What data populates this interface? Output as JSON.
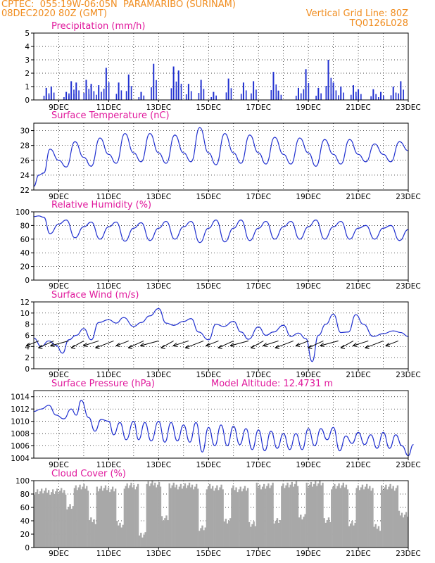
{
  "header": {
    "left_line1": "CPTEC:  055:19W-06:05N  PARAMARIBO (SURINAM)",
    "left_line2": "08DEC2020 80Z (GMT)",
    "right_line1": "Vertical Grid Line: 80Z",
    "right_line2": "TQ0126L028"
  },
  "colors": {
    "header": "#f08c1e",
    "title": "#e0189c",
    "series": "#2030d0",
    "cloud": "#a8a8a8",
    "wind_arrow": "#000000"
  },
  "chart_data": [
    {
      "type": "bar",
      "title": "Precipitation (mm/h)",
      "x_ticks": [
        "9DEC",
        "11DEC",
        "13DEC",
        "15DEC",
        "17DEC",
        "19DEC",
        "21DEC",
        "23DEC"
      ],
      "x_range_days": [
        8,
        23
      ],
      "ylim": [
        0,
        5
      ],
      "yticks": [
        0,
        1,
        2,
        3,
        4,
        5
      ],
      "grid": true,
      "events": [
        {
          "day": 8.5,
          "mm_h": 0.9
        },
        {
          "day": 8.7,
          "mm_h": 1.0
        },
        {
          "day": 9.3,
          "mm_h": 0.6
        },
        {
          "day": 9.5,
          "mm_h": 1.4
        },
        {
          "day": 9.7,
          "mm_h": 1.3
        },
        {
          "day": 10.1,
          "mm_h": 1.5
        },
        {
          "day": 10.3,
          "mm_h": 1.2
        },
        {
          "day": 10.6,
          "mm_h": 1.1
        },
        {
          "day": 10.9,
          "mm_h": 2.4
        },
        {
          "day": 11.4,
          "mm_h": 1.3
        },
        {
          "day": 11.8,
          "mm_h": 1.9
        },
        {
          "day": 12.3,
          "mm_h": 0.6
        },
        {
          "day": 12.8,
          "mm_h": 2.7
        },
        {
          "day": 13.6,
          "mm_h": 2.5
        },
        {
          "day": 13.8,
          "mm_h": 2.2
        },
        {
          "day": 14.2,
          "mm_h": 1.2
        },
        {
          "day": 14.7,
          "mm_h": 1.5
        },
        {
          "day": 15.2,
          "mm_h": 0.6
        },
        {
          "day": 15.8,
          "mm_h": 1.6
        },
        {
          "day": 16.4,
          "mm_h": 1.3
        },
        {
          "day": 16.8,
          "mm_h": 1.4
        },
        {
          "day": 17.6,
          "mm_h": 2.1
        },
        {
          "day": 17.8,
          "mm_h": 0.7
        },
        {
          "day": 18.6,
          "mm_h": 0.9
        },
        {
          "day": 18.9,
          "mm_h": 2.3
        },
        {
          "day": 19.4,
          "mm_h": 0.9
        },
        {
          "day": 19.8,
          "mm_h": 3.0
        },
        {
          "day": 20.0,
          "mm_h": 1.3
        },
        {
          "day": 20.3,
          "mm_h": 1.0
        },
        {
          "day": 20.8,
          "mm_h": 1.1
        },
        {
          "day": 21.0,
          "mm_h": 0.8
        },
        {
          "day": 21.6,
          "mm_h": 0.8
        },
        {
          "day": 21.9,
          "mm_h": 0.6
        },
        {
          "day": 22.4,
          "mm_h": 1.0
        },
        {
          "day": 22.7,
          "mm_h": 1.4
        }
      ]
    },
    {
      "type": "line",
      "title": "Surface Temperature (nC)",
      "x_ticks": [
        "9DEC",
        "11DEC",
        "13DEC",
        "15DEC",
        "17DEC",
        "19DEC",
        "21DEC",
        "23DEC"
      ],
      "x_range_days": [
        8,
        23
      ],
      "ylim": [
        22,
        31
      ],
      "yticks": [
        22,
        24,
        26,
        28,
        30
      ],
      "grid": true,
      "points": [
        [
          8.0,
          22.5
        ],
        [
          8.2,
          24.0
        ],
        [
          8.4,
          24.3
        ],
        [
          8.65,
          27.5
        ],
        [
          9.0,
          26.0
        ],
        [
          9.3,
          25.1
        ],
        [
          9.65,
          28.5
        ],
        [
          10.0,
          26.4
        ],
        [
          10.3,
          25.2
        ],
        [
          10.65,
          29.0
        ],
        [
          11.0,
          26.8
        ],
        [
          11.3,
          25.6
        ],
        [
          11.65,
          29.6
        ],
        [
          12.0,
          27.0
        ],
        [
          12.3,
          25.8
        ],
        [
          12.65,
          29.6
        ],
        [
          13.0,
          27.0
        ],
        [
          13.3,
          25.6
        ],
        [
          13.65,
          29.4
        ],
        [
          14.0,
          27.0
        ],
        [
          14.3,
          25.8
        ],
        [
          14.65,
          30.4
        ],
        [
          15.0,
          27.0
        ],
        [
          15.3,
          25.4
        ],
        [
          15.65,
          29.6
        ],
        [
          16.0,
          27.0
        ],
        [
          16.3,
          25.6
        ],
        [
          16.65,
          29.4
        ],
        [
          17.0,
          27.0
        ],
        [
          17.3,
          25.5
        ],
        [
          17.65,
          29.1
        ],
        [
          18.0,
          26.8
        ],
        [
          18.3,
          25.5
        ],
        [
          18.65,
          29.0
        ],
        [
          19.0,
          27.0
        ],
        [
          19.3,
          25.2
        ],
        [
          19.65,
          28.8
        ],
        [
          20.0,
          26.8
        ],
        [
          20.3,
          25.5
        ],
        [
          20.65,
          28.8
        ],
        [
          21.0,
          26.8
        ],
        [
          21.3,
          25.8
        ],
        [
          21.65,
          28.2
        ],
        [
          22.0,
          26.8
        ],
        [
          22.3,
          25.8
        ],
        [
          22.65,
          28.5
        ],
        [
          23.0,
          27.3
        ]
      ]
    },
    {
      "type": "line",
      "title": "Relative Humidity (%)",
      "x_ticks": [
        "9DEC",
        "11DEC",
        "13DEC",
        "15DEC",
        "17DEC",
        "19DEC",
        "21DEC",
        "23DEC"
      ],
      "x_range_days": [
        8,
        23
      ],
      "ylim": [
        0,
        100
      ],
      "yticks": [
        0,
        20,
        40,
        60,
        80,
        100
      ],
      "grid": true,
      "points": [
        [
          8.0,
          93
        ],
        [
          8.2,
          94
        ],
        [
          8.4,
          92
        ],
        [
          8.65,
          68
        ],
        [
          9.0,
          82
        ],
        [
          9.3,
          88
        ],
        [
          9.65,
          62
        ],
        [
          10.0,
          78
        ],
        [
          10.3,
          85
        ],
        [
          10.65,
          60
        ],
        [
          11.0,
          78
        ],
        [
          11.3,
          85
        ],
        [
          11.65,
          57
        ],
        [
          12.0,
          76
        ],
        [
          12.3,
          84
        ],
        [
          12.65,
          58
        ],
        [
          13.0,
          76
        ],
        [
          13.3,
          86
        ],
        [
          13.65,
          60
        ],
        [
          14.0,
          78
        ],
        [
          14.3,
          86
        ],
        [
          14.65,
          55
        ],
        [
          15.0,
          76
        ],
        [
          15.3,
          88
        ],
        [
          15.65,
          56
        ],
        [
          16.0,
          76
        ],
        [
          16.3,
          88
        ],
        [
          16.65,
          58
        ],
        [
          17.0,
          76
        ],
        [
          17.3,
          86
        ],
        [
          17.65,
          60
        ],
        [
          18.0,
          78
        ],
        [
          18.3,
          86
        ],
        [
          18.65,
          60
        ],
        [
          19.0,
          78
        ],
        [
          19.3,
          88
        ],
        [
          19.65,
          60
        ],
        [
          20.0,
          78
        ],
        [
          20.3,
          86
        ],
        [
          20.65,
          60
        ],
        [
          21.0,
          76
        ],
        [
          21.3,
          80
        ],
        [
          21.65,
          60
        ],
        [
          22.0,
          76
        ],
        [
          22.3,
          80
        ],
        [
          22.65,
          58
        ],
        [
          23.0,
          74
        ]
      ]
    },
    {
      "type": "line",
      "title": "Surface Wind (m/s)",
      "x_ticks": [
        "9DEC",
        "11DEC",
        "13DEC",
        "15DEC",
        "17DEC",
        "19DEC",
        "21DEC",
        "23DEC"
      ],
      "x_range_days": [
        8,
        23
      ],
      "ylim": [
        0,
        12
      ],
      "yticks": [
        0,
        2,
        4,
        6,
        8,
        10,
        12
      ],
      "grid": true,
      "points": [
        [
          8.0,
          5.5
        ],
        [
          8.3,
          4.0
        ],
        [
          8.6,
          5.0
        ],
        [
          8.9,
          4.2
        ],
        [
          9.15,
          2.8
        ],
        [
          9.4,
          5.2
        ],
        [
          9.7,
          6.0
        ],
        [
          10.0,
          7.2
        ],
        [
          10.3,
          5.2
        ],
        [
          10.6,
          8.3
        ],
        [
          11.0,
          8.8
        ],
        [
          11.3,
          8.2
        ],
        [
          11.6,
          9.2
        ],
        [
          12.0,
          7.6
        ],
        [
          12.3,
          8.3
        ],
        [
          12.65,
          9.5
        ],
        [
          13.0,
          10.8
        ],
        [
          13.3,
          8.2
        ],
        [
          13.6,
          7.8
        ],
        [
          14.0,
          8.5
        ],
        [
          14.3,
          9.0
        ],
        [
          14.6,
          6.6
        ],
        [
          15.0,
          5.2
        ],
        [
          15.3,
          8.0
        ],
        [
          15.6,
          7.6
        ],
        [
          16.0,
          8.5
        ],
        [
          16.3,
          6.6
        ],
        [
          16.6,
          5.3
        ],
        [
          17.0,
          7.5
        ],
        [
          17.3,
          6.0
        ],
        [
          17.6,
          6.6
        ],
        [
          18.0,
          7.8
        ],
        [
          18.3,
          5.8
        ],
        [
          18.6,
          6.4
        ],
        [
          18.9,
          5.4
        ],
        [
          19.15,
          1.3
        ],
        [
          19.4,
          6.0
        ],
        [
          19.7,
          8.0
        ],
        [
          20.0,
          9.8
        ],
        [
          20.3,
          6.5
        ],
        [
          20.6,
          6.6
        ],
        [
          20.9,
          9.7
        ],
        [
          21.2,
          8.0
        ],
        [
          21.6,
          5.8
        ],
        [
          22.0,
          6.3
        ],
        [
          22.4,
          6.8
        ],
        [
          22.7,
          6.5
        ],
        [
          23.0,
          5.8
        ]
      ],
      "arrows_days": [
        8.2,
        8.8,
        9.4,
        10.0,
        10.6,
        11.2,
        11.8,
        12.4,
        13.0,
        13.6,
        14.2,
        14.8,
        15.4,
        16.0,
        16.6,
        17.2,
        17.8,
        18.4,
        19.0,
        19.6,
        20.2,
        20.8,
        21.4,
        22.0,
        22.6
      ]
    },
    {
      "type": "line",
      "title": "Surface Pressure (hPa)",
      "annotation": "Model Altitude: 12.4731 m",
      "x_ticks": [
        "9DEC",
        "11DEC",
        "13DEC",
        "15DEC",
        "17DEC",
        "19DEC",
        "21DEC",
        "23DEC"
      ],
      "x_range_days": [
        8,
        23
      ],
      "ylim": [
        1004,
        1015
      ],
      "yticks": [
        1004,
        1006,
        1008,
        1010,
        1012,
        1014
      ],
      "grid": true,
      "points": [
        [
          8.0,
          1011.6
        ],
        [
          8.3,
          1012.0
        ],
        [
          8.6,
          1012.6
        ],
        [
          8.9,
          1011.0
        ],
        [
          9.2,
          1010.4
        ],
        [
          9.5,
          1012.0
        ],
        [
          9.7,
          1011.0
        ],
        [
          9.9,
          1013.4
        ],
        [
          10.2,
          1010.6
        ],
        [
          10.45,
          1008.4
        ],
        [
          10.7,
          1010.3
        ],
        [
          11.0,
          1010.0
        ],
        [
          11.2,
          1007.8
        ],
        [
          11.45,
          1009.8
        ],
        [
          11.7,
          1007.0
        ],
        [
          12.0,
          1010.0
        ],
        [
          12.2,
          1007.0
        ],
        [
          12.45,
          1009.8
        ],
        [
          12.7,
          1006.8
        ],
        [
          13.0,
          1010.0
        ],
        [
          13.25,
          1006.6
        ],
        [
          13.5,
          1009.8
        ],
        [
          13.75,
          1006.8
        ],
        [
          14.0,
          1009.4
        ],
        [
          14.25,
          1006.6
        ],
        [
          14.5,
          1009.8
        ],
        [
          14.75,
          1005.0
        ],
        [
          15.0,
          1009.0
        ],
        [
          15.25,
          1006.0
        ],
        [
          15.5,
          1009.4
        ],
        [
          15.75,
          1006.0
        ],
        [
          16.0,
          1009.2
        ],
        [
          16.25,
          1006.2
        ],
        [
          16.5,
          1008.8
        ],
        [
          16.75,
          1005.4
        ],
        [
          17.0,
          1008.6
        ],
        [
          17.25,
          1005.2
        ],
        [
          17.5,
          1008.4
        ],
        [
          17.75,
          1005.6
        ],
        [
          18.0,
          1008.0
        ],
        [
          18.25,
          1005.4
        ],
        [
          18.5,
          1008.0
        ],
        [
          18.75,
          1005.4
        ],
        [
          19.0,
          1008.8
        ],
        [
          19.25,
          1006.0
        ],
        [
          19.5,
          1008.8
        ],
        [
          19.75,
          1007.0
        ],
        [
          20.0,
          1009.0
        ],
        [
          20.25,
          1005.2
        ],
        [
          20.5,
          1007.6
        ],
        [
          20.75,
          1006.4
        ],
        [
          21.0,
          1008.2
        ],
        [
          21.25,
          1006.2
        ],
        [
          21.5,
          1007.8
        ],
        [
          21.75,
          1005.6
        ],
        [
          22.0,
          1008.2
        ],
        [
          22.25,
          1005.6
        ],
        [
          22.5,
          1007.8
        ],
        [
          22.75,
          1006.0
        ],
        [
          23.0,
          1004.4
        ],
        [
          23.2,
          1006.2
        ]
      ]
    },
    {
      "type": "bar",
      "title": "Cloud Cover (%)",
      "x_ticks": [
        "9DEC",
        "11DEC",
        "13DEC",
        "15DEC",
        "17DEC",
        "19DEC",
        "21DEC",
        "23DEC"
      ],
      "x_range_days": [
        8,
        23
      ],
      "ylim": [
        0,
        100
      ],
      "yticks": [
        0,
        20,
        40,
        60,
        80,
        100
      ],
      "grid": true,
      "segments": [
        {
          "from": 8.0,
          "to": 9.3,
          "pct": 84
        },
        {
          "from": 9.3,
          "to": 9.6,
          "pct": 60
        },
        {
          "from": 9.6,
          "to": 10.2,
          "pct": 90
        },
        {
          "from": 10.2,
          "to": 10.5,
          "pct": 40
        },
        {
          "from": 10.5,
          "to": 11.3,
          "pct": 88
        },
        {
          "from": 11.3,
          "to": 11.6,
          "pct": 35
        },
        {
          "from": 11.6,
          "to": 12.2,
          "pct": 92
        },
        {
          "from": 12.2,
          "to": 12.5,
          "pct": 20
        },
        {
          "from": 12.5,
          "to": 13.1,
          "pct": 95
        },
        {
          "from": 13.1,
          "to": 13.4,
          "pct": 45
        },
        {
          "from": 13.4,
          "to": 14.6,
          "pct": 92
        },
        {
          "from": 14.6,
          "to": 14.9,
          "pct": 30
        },
        {
          "from": 14.9,
          "to": 15.6,
          "pct": 90
        },
        {
          "from": 15.6,
          "to": 15.9,
          "pct": 40
        },
        {
          "from": 15.9,
          "to": 16.6,
          "pct": 88
        },
        {
          "from": 16.6,
          "to": 16.9,
          "pct": 35
        },
        {
          "from": 16.9,
          "to": 17.6,
          "pct": 92
        },
        {
          "from": 17.6,
          "to": 17.9,
          "pct": 40
        },
        {
          "from": 17.9,
          "to": 18.6,
          "pct": 94
        },
        {
          "from": 18.6,
          "to": 18.9,
          "pct": 45
        },
        {
          "from": 18.9,
          "to": 19.6,
          "pct": 95
        },
        {
          "from": 19.6,
          "to": 19.9,
          "pct": 40
        },
        {
          "from": 19.9,
          "to": 20.6,
          "pct": 92
        },
        {
          "from": 20.6,
          "to": 20.9,
          "pct": 35
        },
        {
          "from": 20.9,
          "to": 21.6,
          "pct": 90
        },
        {
          "from": 21.6,
          "to": 21.9,
          "pct": 30
        },
        {
          "from": 21.9,
          "to": 22.6,
          "pct": 90
        },
        {
          "from": 22.6,
          "to": 23.0,
          "pct": 50
        }
      ]
    }
  ]
}
